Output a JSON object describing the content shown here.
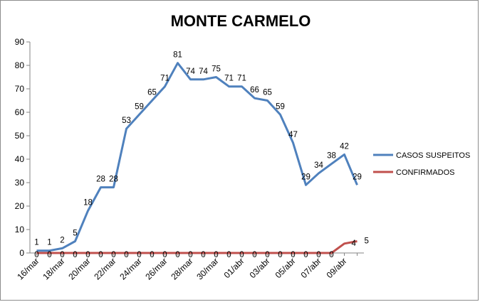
{
  "chart_data": {
    "type": "line",
    "title": "MONTE CARMELO",
    "xlabel": "",
    "ylabel": "",
    "ylim": [
      0,
      90
    ],
    "ystep": 10,
    "grid": false,
    "legend_position": "right",
    "x": [
      "16/mar",
      "17/mar",
      "18/mar",
      "19/mar",
      "20/mar",
      "21/mar",
      "22/mar",
      "23/mar",
      "24/mar",
      "25/mar",
      "26/mar",
      "27/mar",
      "28/mar",
      "29/mar",
      "30/mar",
      "31/mar",
      "01/abr",
      "02/abr",
      "03/abr",
      "04/abr",
      "05/abr",
      "06/abr",
      "07/abr",
      "08/abr",
      "09/abr",
      "10/abr"
    ],
    "x_tick_labels": [
      "16/mar",
      "18/mar",
      "20/mar",
      "22/mar",
      "24/mar",
      "26/mar",
      "28/mar",
      "30/mar",
      "01/abr",
      "03/abr",
      "05/abr",
      "07/abr",
      "09/abr"
    ],
    "series": [
      {
        "name": "CASOS SUSPEITOS",
        "color": "#4f81bd",
        "values": [
          1,
          1,
          2,
          5,
          18,
          28,
          28,
          53,
          59,
          65,
          71,
          81,
          74,
          74,
          75,
          71,
          71,
          66,
          65,
          59,
          47,
          29,
          34,
          38,
          42,
          29
        ]
      },
      {
        "name": "CONFIRMADOS",
        "color": "#c0504d",
        "values": [
          0,
          0,
          0,
          0,
          0,
          0,
          0,
          0,
          0,
          0,
          0,
          0,
          0,
          0,
          0,
          0,
          0,
          0,
          0,
          0,
          0,
          0,
          0,
          0,
          4,
          5
        ]
      }
    ]
  }
}
